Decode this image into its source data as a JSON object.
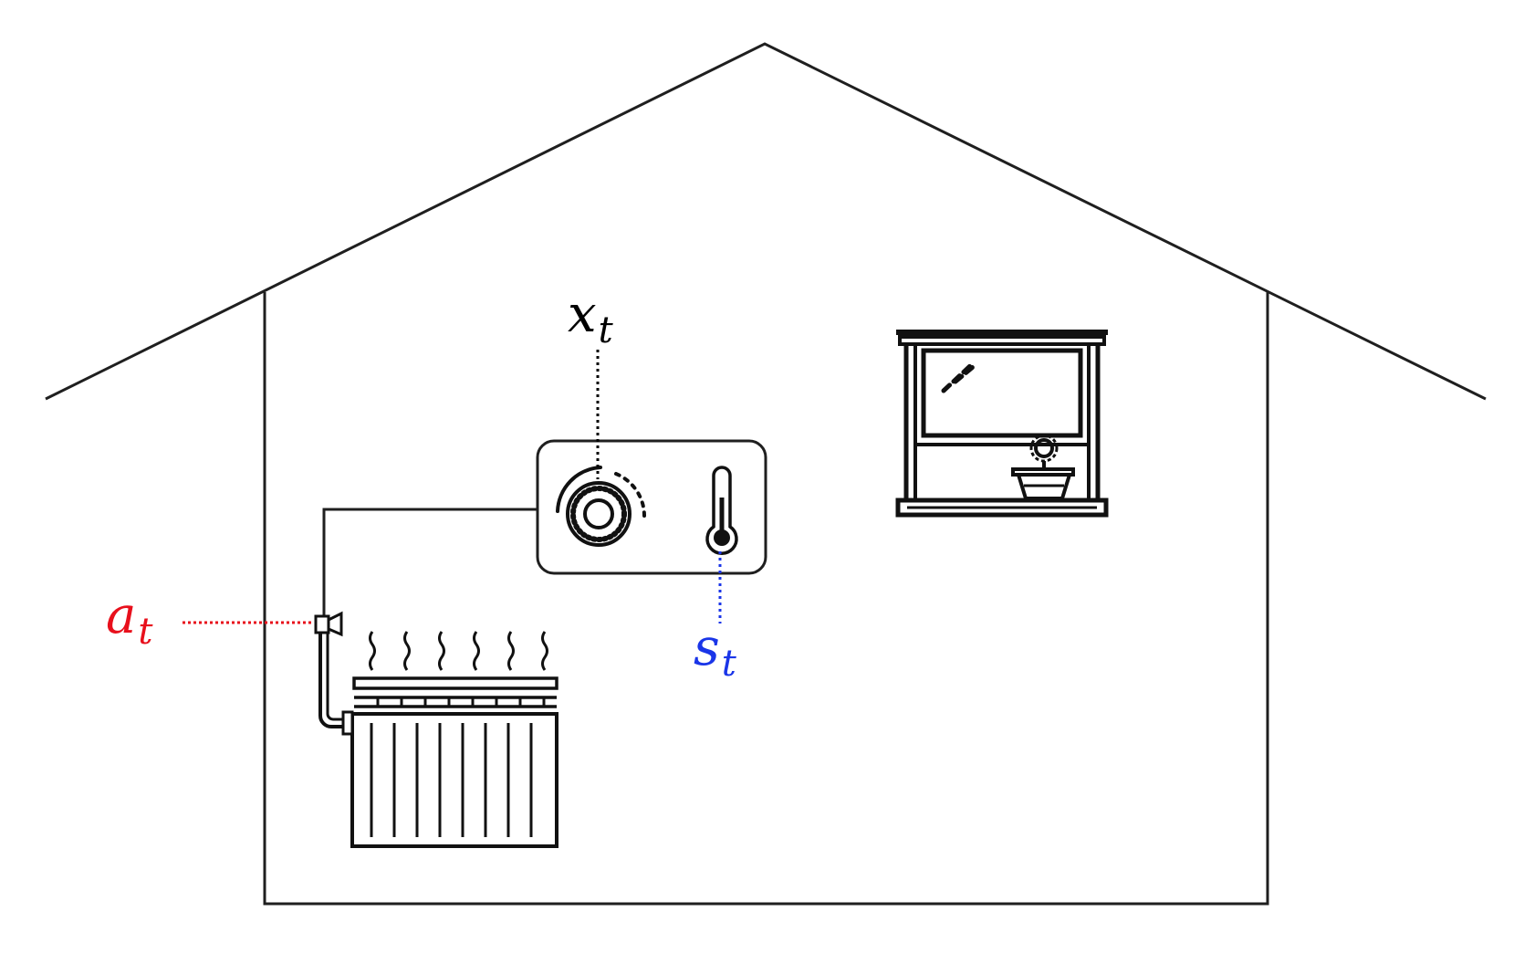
{
  "labels": {
    "x": {
      "base": "x",
      "sub": "t",
      "color": "#000000"
    },
    "s": {
      "base": "s",
      "sub": "t",
      "color": "#1a35e8"
    },
    "a": {
      "base": "a",
      "sub": "t",
      "color": "#e8101c"
    }
  },
  "colors": {
    "outline": "#1f1f1f",
    "action_line": "#e8101c",
    "state_line": "#1a35e8",
    "setpoint_line": "#000000"
  },
  "icons": [
    "house-outline",
    "thermostat-icon",
    "dial-icon",
    "thermometer-icon",
    "radiator-icon",
    "valve-icon",
    "window-icon",
    "flower-pot-icon"
  ]
}
